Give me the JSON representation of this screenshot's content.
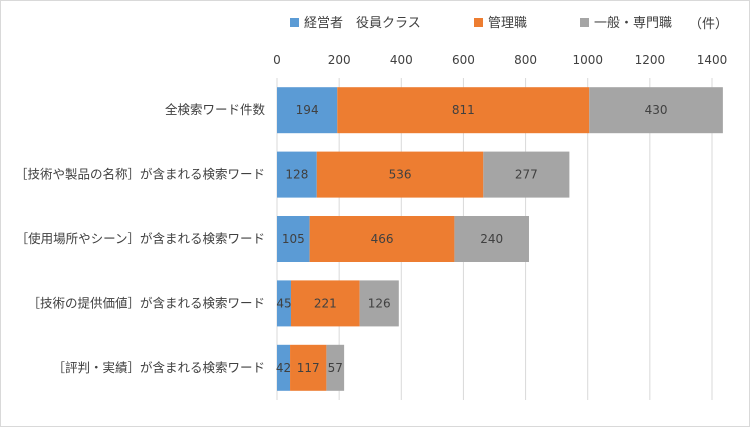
{
  "chart_data": {
    "type": "bar",
    "orientation": "horizontal",
    "stacked": true,
    "unit": "（件）",
    "categories": [
      "全検索ワード件数",
      "［技術や製品の名称］が含まれる検索ワード",
      "［使用場所やシーン］が含まれる検索ワード",
      "［技術の提供価値］が含まれる検索ワード",
      "［評判・実績］が含まれる検索ワード"
    ],
    "series": [
      {
        "name": "経営者　役員クラス",
        "color": "#5b9bd5",
        "values": [
          194,
          128,
          105,
          45,
          42
        ]
      },
      {
        "name": "管理職",
        "color": "#ed7d31",
        "values": [
          811,
          536,
          466,
          221,
          117
        ]
      },
      {
        "name": "一般・専門職",
        "color": "#a5a5a5",
        "values": [
          430,
          277,
          240,
          126,
          57
        ]
      }
    ],
    "xticks": [
      0,
      200,
      400,
      600,
      800,
      1000,
      1200,
      1400
    ],
    "xlim": [
      0,
      1400
    ],
    "legend_position": "top",
    "grid": true
  }
}
